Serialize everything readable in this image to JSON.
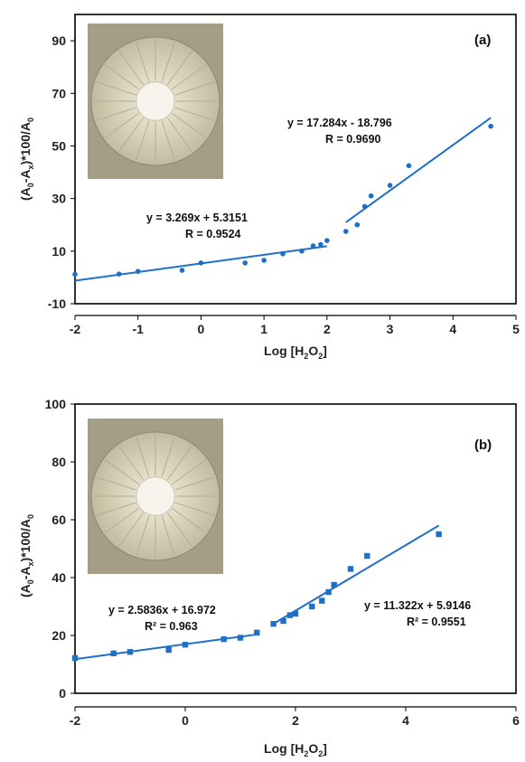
{
  "chart_data": [
    {
      "type": "scatter",
      "panel_label": "(a)",
      "xlabel": "Log [H2O2]",
      "ylabel": "(A0-Ax)*100/A0",
      "xlim": [
        -2,
        5
      ],
      "ylim": [
        -10,
        100
      ],
      "x_ticks": [
        -2,
        -1,
        0,
        1,
        2,
        3,
        4,
        5
      ],
      "y_ticks": [
        -10,
        10,
        30,
        50,
        70,
        90
      ],
      "grid": false,
      "marker": "circle",
      "series": [
        {
          "x": [
            -2,
            -1.3,
            -1,
            -0.3,
            0,
            0.7,
            1,
            1.3,
            1.6,
            1.78,
            1.9,
            2.0,
            2.3,
            2.48,
            2.6,
            2.7,
            3.0,
            3.3,
            4.6
          ],
          "y": [
            1.2,
            1.3,
            2.3,
            2.7,
            5.5,
            5.5,
            6.5,
            9,
            10,
            12,
            12.5,
            14,
            17.5,
            20,
            27,
            31,
            35,
            42.5,
            57.5
          ]
        }
      ],
      "fits": [
        {
          "equation": "y = 3.269x + 5.3151",
          "stat": "R = 0.9524",
          "slope": 3.269,
          "intercept": 5.3151,
          "x_range": [
            -2,
            2
          ]
        },
        {
          "equation": "y = 17.284x - 18.796",
          "stat": "R = 0.9690",
          "slope": 17.284,
          "intercept": -18.796,
          "x_range": [
            2.3,
            4.6
          ]
        }
      ],
      "colors": {
        "series": "#1f6fc6",
        "fit": "#1f6fc6"
      }
    },
    {
      "type": "scatter",
      "panel_label": "(b)",
      "xlabel": "Log [H2O2]",
      "ylabel": "(A0-Ax)*100/A0",
      "xlim": [
        -2,
        6
      ],
      "ylim": [
        0,
        100
      ],
      "x_ticks": [
        -2,
        0,
        2,
        4,
        6
      ],
      "y_ticks": [
        0,
        20,
        40,
        60,
        80,
        100
      ],
      "grid": false,
      "marker": "square",
      "series": [
        {
          "x": [
            -2,
            -1.3,
            -1,
            -0.3,
            0,
            0.7,
            1,
            1.3,
            1.6,
            1.78,
            1.9,
            2.0,
            2.3,
            2.48,
            2.6,
            2.7,
            3.0,
            3.3,
            4.6
          ],
          "y": [
            12.2,
            13.8,
            14.3,
            15,
            16.8,
            18.7,
            19.2,
            21,
            24,
            25,
            27,
            27.5,
            30,
            32,
            35,
            37.5,
            43,
            47.5,
            55
          ]
        }
      ],
      "fits": [
        {
          "equation": "y = 2.5836x + 16.972",
          "stat": "R² = 0.963",
          "slope": 2.5836,
          "intercept": 16.972,
          "x_range": [
            -2,
            1.3
          ]
        },
        {
          "equation": "y = 11.322x + 5.9146",
          "stat": "R² = 0.9551",
          "slope": 11.322,
          "intercept": 5.9146,
          "x_range": [
            1.6,
            4.6
          ]
        }
      ],
      "colors": {
        "series": "#1f6fc6",
        "fit": "#1f6fc6"
      }
    }
  ]
}
